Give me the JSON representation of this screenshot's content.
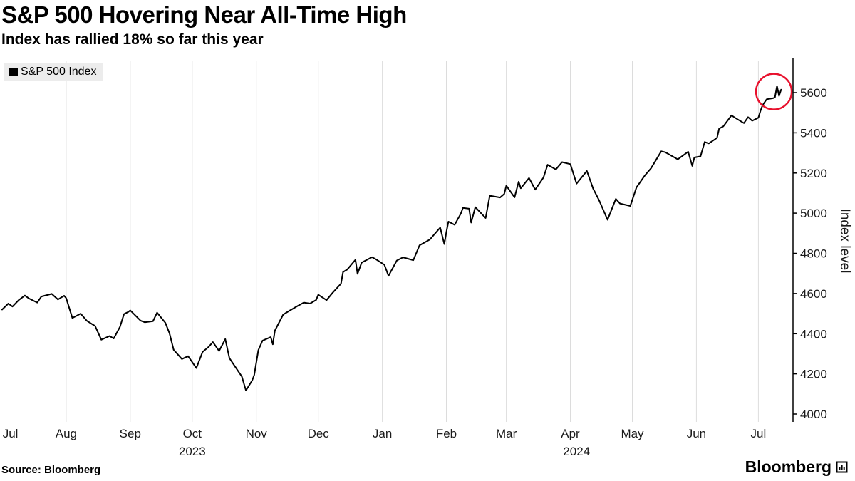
{
  "header": {
    "title": "S&P 500 Hovering Near All-Time High",
    "subtitle": "Index has rallied 18% so far this year"
  },
  "legend": {
    "label": "S&P 500 Index",
    "marker_color": "#000000"
  },
  "colors": {
    "line": "#000000",
    "highlight": "#e8112d",
    "grid": "#dcdcdc",
    "legend_bg": "#ececec",
    "text": "#1a1a1a"
  },
  "chart_data": {
    "type": "line",
    "title": "S&P 500 Hovering Near All-Time High",
    "subtitle": "Index has rallied 18% so far this year",
    "x_unit": "days since Jul 1, 2023",
    "legend_position": "top-left",
    "grid": "vertical-month-lines",
    "series": [
      {
        "name": "S&P 500 Index",
        "color": "#000000",
        "points": [
          [
            0,
            4520
          ],
          [
            3,
            4550
          ],
          [
            5,
            4535
          ],
          [
            8,
            4567
          ],
          [
            11,
            4590
          ],
          [
            13,
            4575
          ],
          [
            17,
            4555
          ],
          [
            19,
            4585
          ],
          [
            24,
            4598
          ],
          [
            27,
            4570
          ],
          [
            30,
            4589
          ],
          [
            31,
            4577
          ],
          [
            34,
            4478
          ],
          [
            38,
            4500
          ],
          [
            41,
            4464
          ],
          [
            45,
            4438
          ],
          [
            48,
            4370
          ],
          [
            52,
            4388
          ],
          [
            54,
            4376
          ],
          [
            57,
            4433
          ],
          [
            59,
            4498
          ],
          [
            61,
            4508
          ],
          [
            62,
            4516
          ],
          [
            67,
            4465
          ],
          [
            69,
            4457
          ],
          [
            73,
            4462
          ],
          [
            75,
            4505
          ],
          [
            79,
            4454
          ],
          [
            81,
            4402
          ],
          [
            83,
            4320
          ],
          [
            87,
            4274
          ],
          [
            90,
            4288
          ],
          [
            94,
            4229
          ],
          [
            97,
            4309
          ],
          [
            100,
            4335
          ],
          [
            102,
            4358
          ],
          [
            105,
            4314
          ],
          [
            108,
            4373
          ],
          [
            110,
            4278
          ],
          [
            114,
            4217
          ],
          [
            116,
            4187
          ],
          [
            118,
            4117
          ],
          [
            121,
            4167
          ],
          [
            122,
            4194
          ],
          [
            124,
            4318
          ],
          [
            126,
            4365
          ],
          [
            130,
            4383
          ],
          [
            131,
            4347
          ],
          [
            132,
            4415
          ],
          [
            136,
            4495
          ],
          [
            139,
            4514
          ],
          [
            143,
            4538
          ],
          [
            146,
            4555
          ],
          [
            149,
            4550
          ],
          [
            152,
            4568
          ],
          [
            153,
            4594
          ],
          [
            157,
            4567
          ],
          [
            160,
            4604
          ],
          [
            164,
            4649
          ],
          [
            165,
            4707
          ],
          [
            167,
            4719
          ],
          [
            171,
            4768
          ],
          [
            172,
            4698
          ],
          [
            174,
            4754
          ],
          [
            179,
            4781
          ],
          [
            181,
            4770
          ],
          [
            185,
            4743
          ],
          [
            187,
            4688
          ],
          [
            191,
            4764
          ],
          [
            194,
            4780
          ],
          [
            199,
            4766
          ],
          [
            202,
            4840
          ],
          [
            207,
            4869
          ],
          [
            212,
            4928
          ],
          [
            214,
            4846
          ],
          [
            215,
            4906
          ],
          [
            216,
            4958
          ],
          [
            219,
            4942
          ],
          [
            222,
            4998
          ],
          [
            223,
            5026
          ],
          [
            226,
            5022
          ],
          [
            227,
            4953
          ],
          [
            229,
            5030
          ],
          [
            234,
            4976
          ],
          [
            236,
            5087
          ],
          [
            241,
            5078
          ],
          [
            243,
            5096
          ],
          [
            244,
            5137
          ],
          [
            248,
            5079
          ],
          [
            250,
            5157
          ],
          [
            251,
            5124
          ],
          [
            255,
            5175
          ],
          [
            258,
            5117
          ],
          [
            262,
            5178
          ],
          [
            264,
            5241
          ],
          [
            268,
            5218
          ],
          [
            271,
            5254
          ],
          [
            275,
            5244
          ],
          [
            278,
            5147
          ],
          [
            283,
            5210
          ],
          [
            286,
            5123
          ],
          [
            289,
            5062
          ],
          [
            293,
            4967
          ],
          [
            297,
            5071
          ],
          [
            299,
            5048
          ],
          [
            304,
            5036
          ],
          [
            307,
            5128
          ],
          [
            311,
            5187
          ],
          [
            314,
            5223
          ],
          [
            319,
            5308
          ],
          [
            321,
            5303
          ],
          [
            327,
            5268
          ],
          [
            332,
            5306
          ],
          [
            334,
            5235
          ],
          [
            335,
            5277
          ],
          [
            338,
            5283
          ],
          [
            340,
            5354
          ],
          [
            342,
            5347
          ],
          [
            346,
            5375
          ],
          [
            347,
            5421
          ],
          [
            349,
            5432
          ],
          [
            353,
            5487
          ],
          [
            355,
            5473
          ],
          [
            359,
            5448
          ],
          [
            361,
            5478
          ],
          [
            363,
            5460
          ],
          [
            366,
            5475
          ],
          [
            367,
            5509
          ],
          [
            368,
            5537
          ],
          [
            370,
            5567
          ],
          [
            373,
            5572
          ],
          [
            374,
            5576
          ],
          [
            375,
            5633
          ],
          [
            376,
            5584
          ],
          [
            377,
            5615
          ]
        ]
      }
    ],
    "x_axis": {
      "months": [
        "Jul",
        "Aug",
        "Sep",
        "Oct",
        "Nov",
        "Dec",
        "Jan",
        "Feb",
        "Mar",
        "Apr",
        "May",
        "Jun",
        "Jul"
      ],
      "month_label_days": [
        4,
        31,
        62,
        92,
        123,
        153,
        184,
        215,
        244,
        275,
        305,
        336,
        366
      ],
      "grid_days": [
        31,
        62,
        92,
        123,
        153,
        184,
        215,
        244,
        275,
        305,
        336,
        366
      ],
      "years": [
        {
          "label": "2023",
          "center_day": 92
        },
        {
          "label": "2024",
          "center_day": 278
        }
      ],
      "span_days": 378
    },
    "y_axis": {
      "label": "Index level",
      "ticks": [
        4000,
        4200,
        4400,
        4600,
        4800,
        5000,
        5200,
        5400,
        5600
      ],
      "min": 4000,
      "max": 5760,
      "side": "right"
    },
    "annotation": {
      "shape": "circle",
      "day": 373.5,
      "value": 5605,
      "radius": 25,
      "color": "#e8112d"
    }
  },
  "footer": {
    "source": "Source: Bloomberg",
    "brand": "Bloomberg"
  }
}
